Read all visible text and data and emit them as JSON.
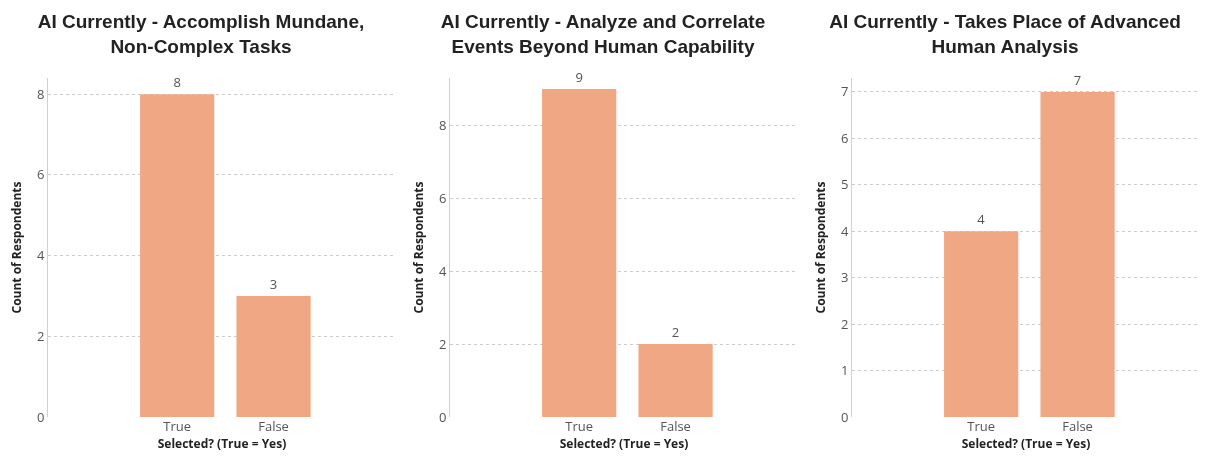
{
  "chart_data": [
    {
      "type": "bar",
      "title": "AI Currently - Accomplish Mundane, Non-Complex Tasks",
      "xlabel": "Selected? (True = Yes)",
      "ylabel": "Count of Respondents",
      "categories": [
        "True",
        "False"
      ],
      "values": [
        8,
        3
      ],
      "color": "#f0a884",
      "ylim": [
        0,
        8.4
      ],
      "yticks": [
        0,
        2,
        4,
        6,
        8
      ],
      "grid": "y",
      "data_labels": true
    },
    {
      "type": "bar",
      "title": "AI Currently - Analyze and Correlate Events Beyond Human Capability",
      "xlabel": "Selected? (True = Yes)",
      "ylabel": "Count of Respondents",
      "categories": [
        "True",
        "False"
      ],
      "values": [
        9,
        2
      ],
      "color": "#f0a884",
      "ylim": [
        0,
        9.3
      ],
      "yticks": [
        0,
        2,
        4,
        6,
        8
      ],
      "grid": "y",
      "data_labels": true
    },
    {
      "type": "bar",
      "title": "AI Currently - Takes Place of Advanced Human Analysis",
      "xlabel": "Selected? (True = Yes)",
      "ylabel": "Count of Respondents",
      "categories": [
        "True",
        "False"
      ],
      "values": [
        4,
        7
      ],
      "color": "#f0a884",
      "ylim": [
        0,
        7.3
      ],
      "yticks": [
        0,
        1,
        2,
        3,
        4,
        5,
        6,
        7
      ],
      "grid": "y",
      "data_labels": true
    }
  ]
}
